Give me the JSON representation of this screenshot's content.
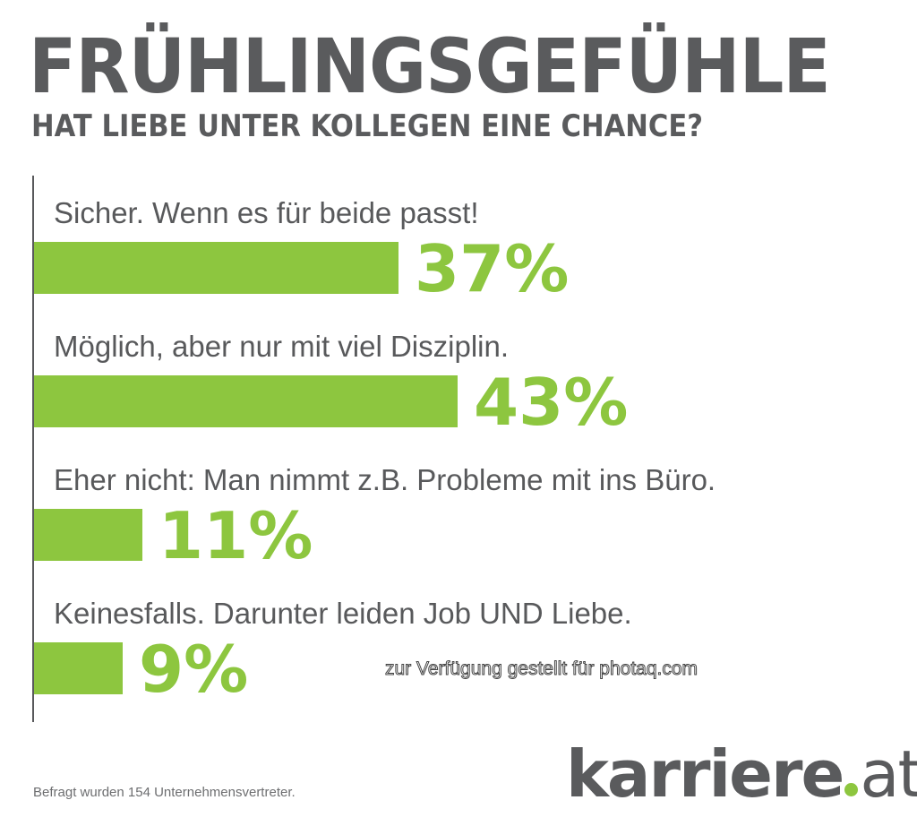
{
  "title": "FRÜHLINGSGEFÜHLE",
  "subtitle": "HAT LIEBE UNTER KOLLEGEN EINE CHANCE?",
  "footer": "Befragt wurden 154 Unternehmensvertreter.",
  "watermark": "zur Verfügung gestellt für photaq.com",
  "logo": {
    "name": "karriere",
    "tld": "at"
  },
  "colors": {
    "bar": "#8dc63f",
    "text": "#58595b"
  },
  "chart_data": {
    "type": "bar",
    "orientation": "horizontal",
    "title": "FRÜHLINGSGEFÜHLE",
    "subtitle": "HAT LIEBE UNTER KOLLEGEN EINE CHANCE?",
    "categories": [
      "Sicher. Wenn es für beide passt!",
      "Möglich, aber nur mit viel Disziplin.",
      "Eher nicht: Man nimmt z.B. Probleme mit ins Büro.",
      "Keinesfalls. Darunter leiden Job UND Liebe."
    ],
    "values": [
      37,
      43,
      11,
      9
    ],
    "value_labels": [
      "37%",
      "43%",
      "11%",
      "9%"
    ],
    "unit": "%",
    "xlim": [
      0,
      100
    ],
    "grid": false
  }
}
